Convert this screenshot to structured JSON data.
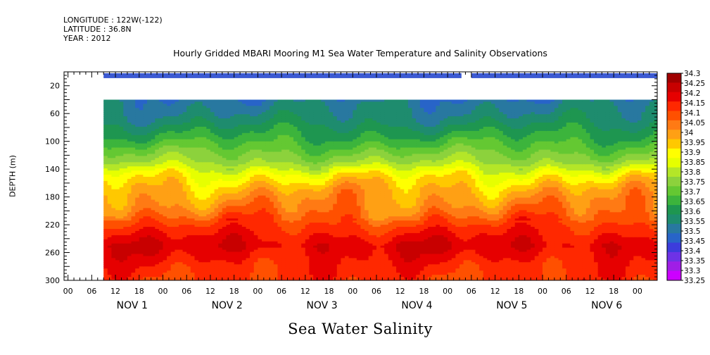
{
  "header": {
    "longitude": "LONGITUDE : 122W(-122)",
    "latitude": "LATITUDE : 36.8N",
    "year": "YEAR : 2012"
  },
  "chart_data": {
    "type": "heatmap",
    "title": "Hourly Gridded MBARI Mooring M1 Sea Water Temperature and Salinity Observations",
    "ylabel": "DEPTH (m)",
    "xlabel": "Sea Water Salinity",
    "y_axis": {
      "range": [
        300,
        0
      ],
      "ticks": [
        20,
        60,
        100,
        140,
        180,
        220,
        260,
        300
      ]
    },
    "x_axis": {
      "hour_labels": [
        "00",
        "06",
        "12",
        "18",
        "00",
        "06",
        "12",
        "18",
        "00",
        "06",
        "12",
        "18",
        "00",
        "06",
        "12",
        "18",
        "00",
        "06",
        "12",
        "18",
        "00",
        "06",
        "12",
        "18",
        "00"
      ],
      "day_labels": [
        "NOV  1",
        "NOV  2",
        "NOV  3",
        "NOV  4",
        "NOV  5",
        "NOV  6"
      ],
      "range_hours": [
        -7,
        143
      ]
    },
    "colorbar": {
      "levels": [
        34.3,
        34.25,
        34.2,
        34.15,
        34.1,
        34.05,
        34,
        33.95,
        33.9,
        33.85,
        33.8,
        33.75,
        33.7,
        33.65,
        33.6,
        33.55,
        33.5,
        33.45,
        33.4,
        33.35,
        33.3,
        33.25
      ],
      "colors": [
        "#a00000",
        "#c80000",
        "#e60000",
        "#ff2800",
        "#ff5000",
        "#ff7a14",
        "#ffa014",
        "#ffc800",
        "#ffff00",
        "#e6ff00",
        "#b4e628",
        "#8cd23c",
        "#64c832",
        "#3cb43c",
        "#1e9650",
        "#1e8c6e",
        "#2878a0",
        "#2864c8",
        "#3c3cdc",
        "#6e32e6",
        "#a01ee6",
        "#cc00ff"
      ]
    },
    "top_strip_segments": [
      [
        3,
        93.5
      ],
      [
        96,
        143
      ]
    ],
    "data_start_depth": 40,
    "data_start_hour": 3
  }
}
